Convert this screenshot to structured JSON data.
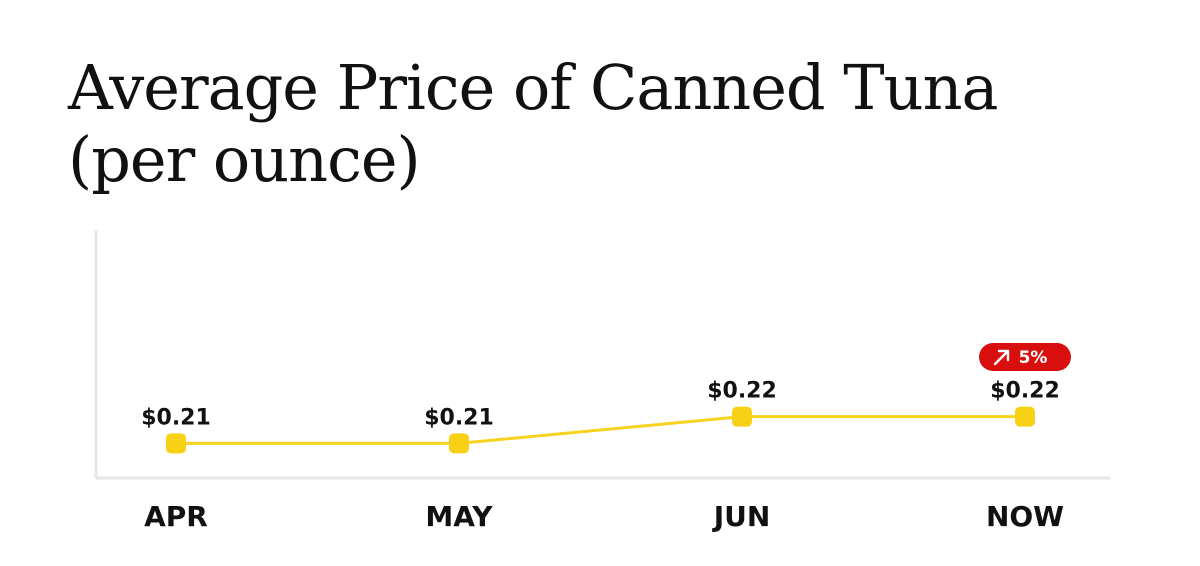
{
  "chart_data": {
    "type": "line",
    "title_lines": [
      "Average Price of Canned Tuna",
      "(per ounce)"
    ],
    "categories": [
      "APR",
      "MAY",
      "JUN",
      "NOW"
    ],
    "values": [
      0.21,
      0.21,
      0.22,
      0.22
    ],
    "data_labels": [
      "$0.21",
      "$0.21",
      "$0.22",
      "$0.22"
    ],
    "xlabel": "",
    "ylabel": "",
    "ylim": [
      0.2,
      0.23
    ],
    "grid": false,
    "annotation": {
      "category": "NOW",
      "text": "5%",
      "direction": "up",
      "icon": "arrow-up-right-icon",
      "color": "#d90f0f"
    },
    "colors": {
      "line": "#f7d21e",
      "marker": "#f8d117",
      "axis": "#e6e6e6",
      "text": "#111111"
    }
  }
}
